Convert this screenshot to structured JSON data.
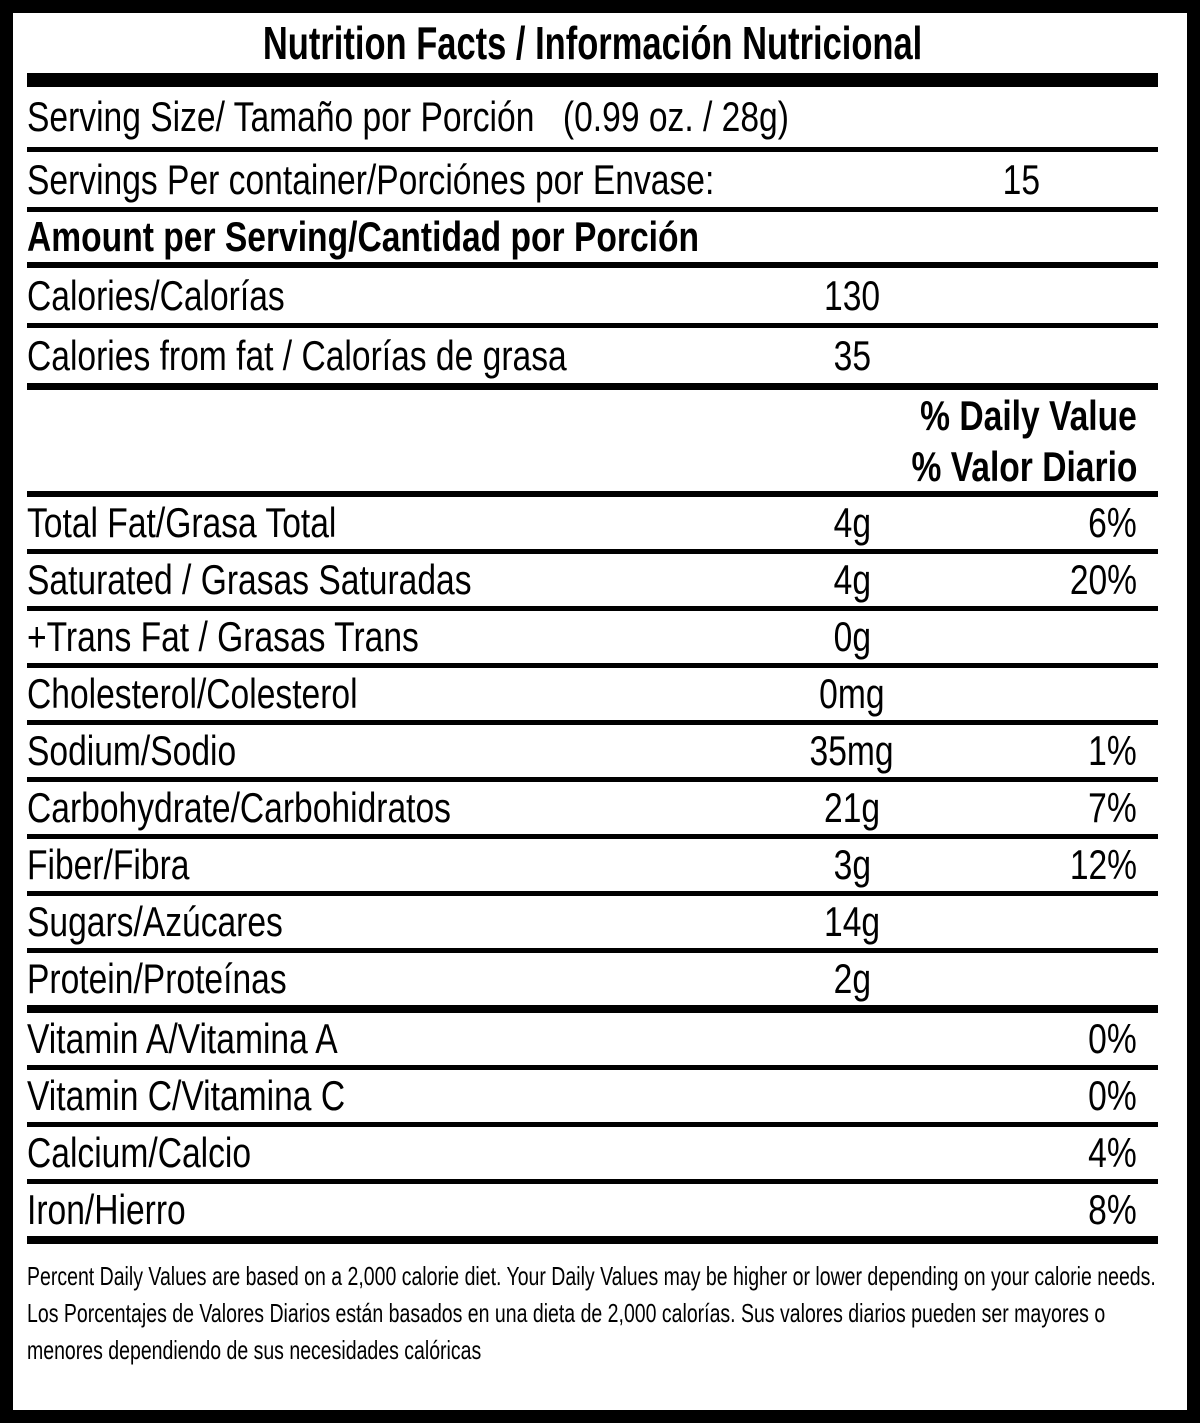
{
  "label": {
    "title": "Nutrition Facts / Información Nutricional",
    "serving_size": {
      "label": "Serving Size/ Tamaño por Porción",
      "value": "(0.99 oz. / 28g)"
    },
    "servings_per_container": {
      "label": "Servings Per container/Porciónes por Envase:",
      "value": "15"
    },
    "amount_per_serving": "Amount per Serving/Cantidad por Porción",
    "calories": {
      "label": "Calories/Calorías",
      "value": "130"
    },
    "calories_from_fat": {
      "label": "Calories from fat / Calorías de grasa",
      "value": "35"
    },
    "daily_value_header_en": "% Daily Value",
    "daily_value_header_es": "% Valor Diario",
    "nutrients": [
      {
        "label": "Total Fat/Grasa Total",
        "amount": "4g",
        "dv": "6%",
        "rule": "thin"
      },
      {
        "label": "Saturated / Grasas Saturadas",
        "amount": "4g",
        "dv": "20%",
        "rule": "thin"
      },
      {
        "label": "+Trans Fat / Grasas Trans",
        "amount": "0g",
        "dv": "",
        "rule": "thin"
      },
      {
        "label": "Cholesterol/Colesterol",
        "amount": "0mg",
        "dv": "",
        "rule": "thin"
      },
      {
        "label": "Sodium/Sodio",
        "amount": "35mg",
        "dv": "1%",
        "rule": "thin"
      },
      {
        "label": "Carbohydrate/Carbohidratos",
        "amount": "21g",
        "dv": "7%",
        "rule": "thin"
      },
      {
        "label": "Fiber/Fibra",
        "amount": "3g",
        "dv": "12%",
        "rule": "thin"
      },
      {
        "label": "Sugars/Azúcares",
        "amount": "14g",
        "dv": "",
        "rule": "thin"
      },
      {
        "label": "Protein/Proteínas",
        "amount": "2g",
        "dv": "",
        "rule": "thick"
      },
      {
        "label": "Vitamin A/Vitamina A",
        "amount": "",
        "dv": "0%",
        "rule": "thin"
      },
      {
        "label": "Vitamin C/Vitamina C",
        "amount": "",
        "dv": "0%",
        "rule": "thin"
      },
      {
        "label": "Calcium/Calcio",
        "amount": "",
        "dv": "4%",
        "rule": "thin"
      },
      {
        "label": "Iron/Hierro",
        "amount": "",
        "dv": "8%",
        "rule": "thick"
      }
    ],
    "footnotes": {
      "en": "Percent Daily Values are based on a 2,000 calorie diet. Your Daily Values may be higher or lower depending on your calorie needs.",
      "es": "Los Porcentajes de Valores Diarios están basados en una dieta de 2,000 calorías. Sus valores diarios pueden ser mayores o menores dependiendo de sus necesidades calóricas"
    },
    "colors": {
      "ink": "#000000",
      "background": "#ffffff"
    }
  }
}
